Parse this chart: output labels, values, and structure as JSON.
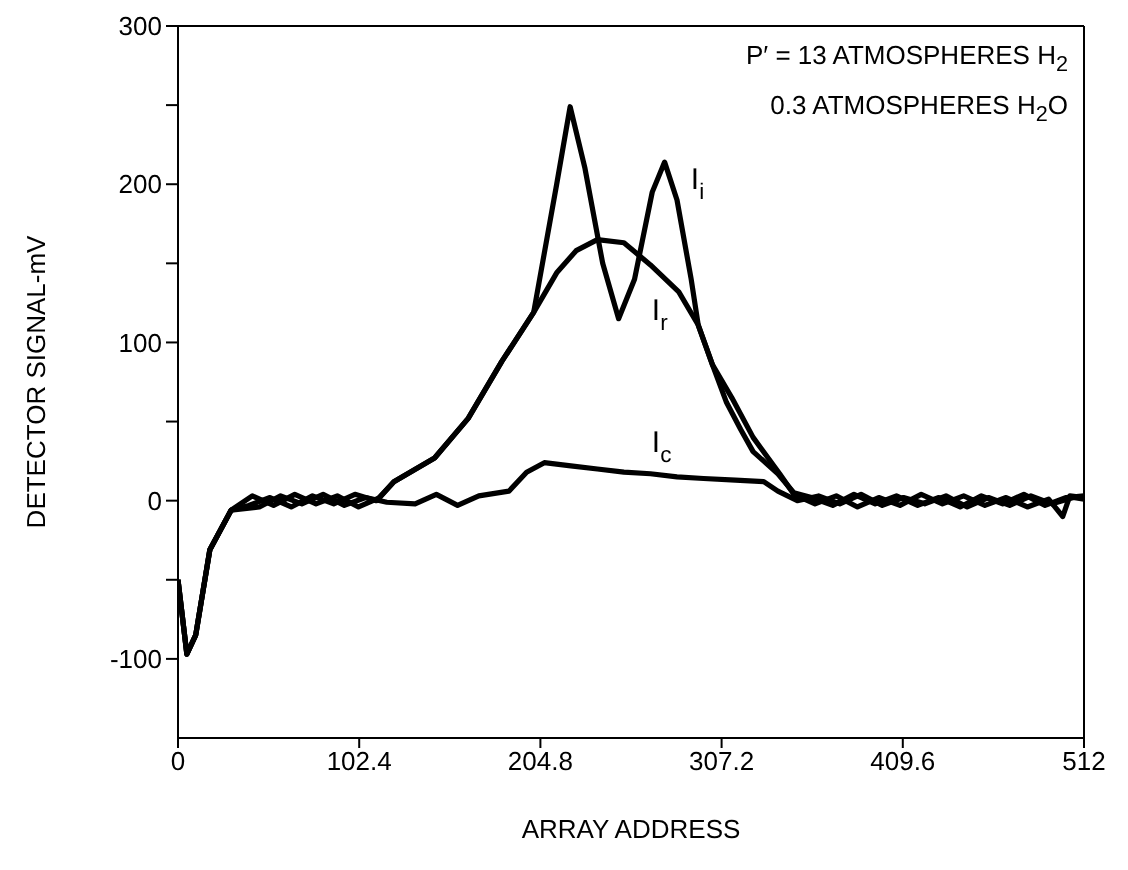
{
  "chart_data": {
    "type": "line",
    "xlabel": "ARRAY ADDRESS",
    "ylabel": "DETECTOR SIGNAL-mV",
    "xlim": [
      0,
      512
    ],
    "xticks": [
      0,
      102.4,
      204.8,
      307.2,
      409.6,
      512
    ],
    "ylim": [
      -150,
      300
    ],
    "yticks": [
      -100,
      {
        "value": -50,
        "label": null
      },
      0,
      {
        "value": 50,
        "label": null
      },
      100,
      {
        "value": 150,
        "label": null
      },
      200,
      {
        "value": 250,
        "label": null
      },
      300
    ],
    "grid": false,
    "marker": "none",
    "line_style": "solid",
    "annotations": [
      "P′ = 13 ATMOSPHERES H$_{2}$",
      "0.3 ATMOSPHERES H$_{2}$O"
    ],
    "series": [
      {
        "name": "I$_{i}$",
        "color": "#000000",
        "x": [
          0,
          5,
          10,
          18,
          30,
          40,
          52,
          64,
          76,
          88,
          100,
          112,
          122,
          145,
          164,
          183,
          201,
          214,
          221.6,
          230,
          240,
          249,
          258,
          268,
          275,
          282,
          290,
          294,
          302,
          313,
          325,
          340,
          348,
          360,
          372,
          384,
          396,
          408,
          420,
          432,
          444,
          456,
          468,
          480,
          492,
          500,
          504,
          512
        ],
        "values": [
          -50,
          -97,
          -85,
          -31,
          -6,
          -3,
          2,
          -4,
          3,
          -2,
          4,
          0,
          12,
          27,
          52,
          88,
          119,
          200,
          249,
          210,
          150,
          115,
          140,
          195,
          214,
          190,
          140,
          111,
          86,
          65,
          40,
          17,
          4,
          -2,
          3,
          -4,
          2,
          -3,
          4,
          -2,
          3,
          -3,
          2,
          -4,
          1,
          -10,
          3,
          2
        ]
      },
      {
        "name": "I$_{r}$",
        "color": "#000000",
        "x": [
          0,
          5,
          10,
          18,
          30,
          42,
          54,
          66,
          78,
          90,
          102,
          114,
          122,
          145,
          164,
          183,
          201,
          214,
          225,
          237,
          252,
          267,
          283,
          294,
          302,
          310,
          318,
          325,
          339,
          348,
          358,
          370,
          382,
          394,
          406,
          418,
          430,
          442,
          454,
          466,
          478,
          490,
          502,
          512
        ],
        "values": [
          -50,
          -97,
          -85,
          -31,
          -6,
          3,
          -3,
          4,
          -2,
          3,
          -4,
          2,
          12,
          27,
          52,
          88,
          119,
          144,
          158,
          165,
          163,
          149,
          132,
          111,
          86,
          62,
          45,
          31,
          17,
          5,
          2,
          -3,
          4,
          -2,
          3,
          -3,
          2,
          -4,
          3,
          -2,
          4,
          -3,
          2,
          3
        ]
      },
      {
        "name": "I$_{c}$",
        "color": "#000000",
        "x": [
          0,
          5,
          10,
          18,
          30,
          46,
          58,
          70,
          82,
          94,
          106,
          118,
          134,
          146,
          158,
          170,
          187,
          197,
          207,
          222,
          237,
          252,
          267,
          282,
          297,
          315,
          331,
          339,
          350,
          362,
          374,
          386,
          398,
          410,
          422,
          434,
          446,
          458,
          470,
          482,
          494,
          506,
          512
        ],
        "values": [
          -50,
          -97,
          -85,
          -31,
          -6,
          -4,
          3,
          -2,
          4,
          -3,
          2,
          -1,
          -2,
          4,
          -3,
          3,
          6,
          18,
          24,
          22,
          20,
          18,
          17,
          15,
          14,
          13,
          12,
          6,
          0,
          3,
          -2,
          4,
          -3,
          2,
          -2,
          3,
          -4,
          2,
          -3,
          3,
          -2,
          2,
          1
        ]
      }
    ]
  }
}
